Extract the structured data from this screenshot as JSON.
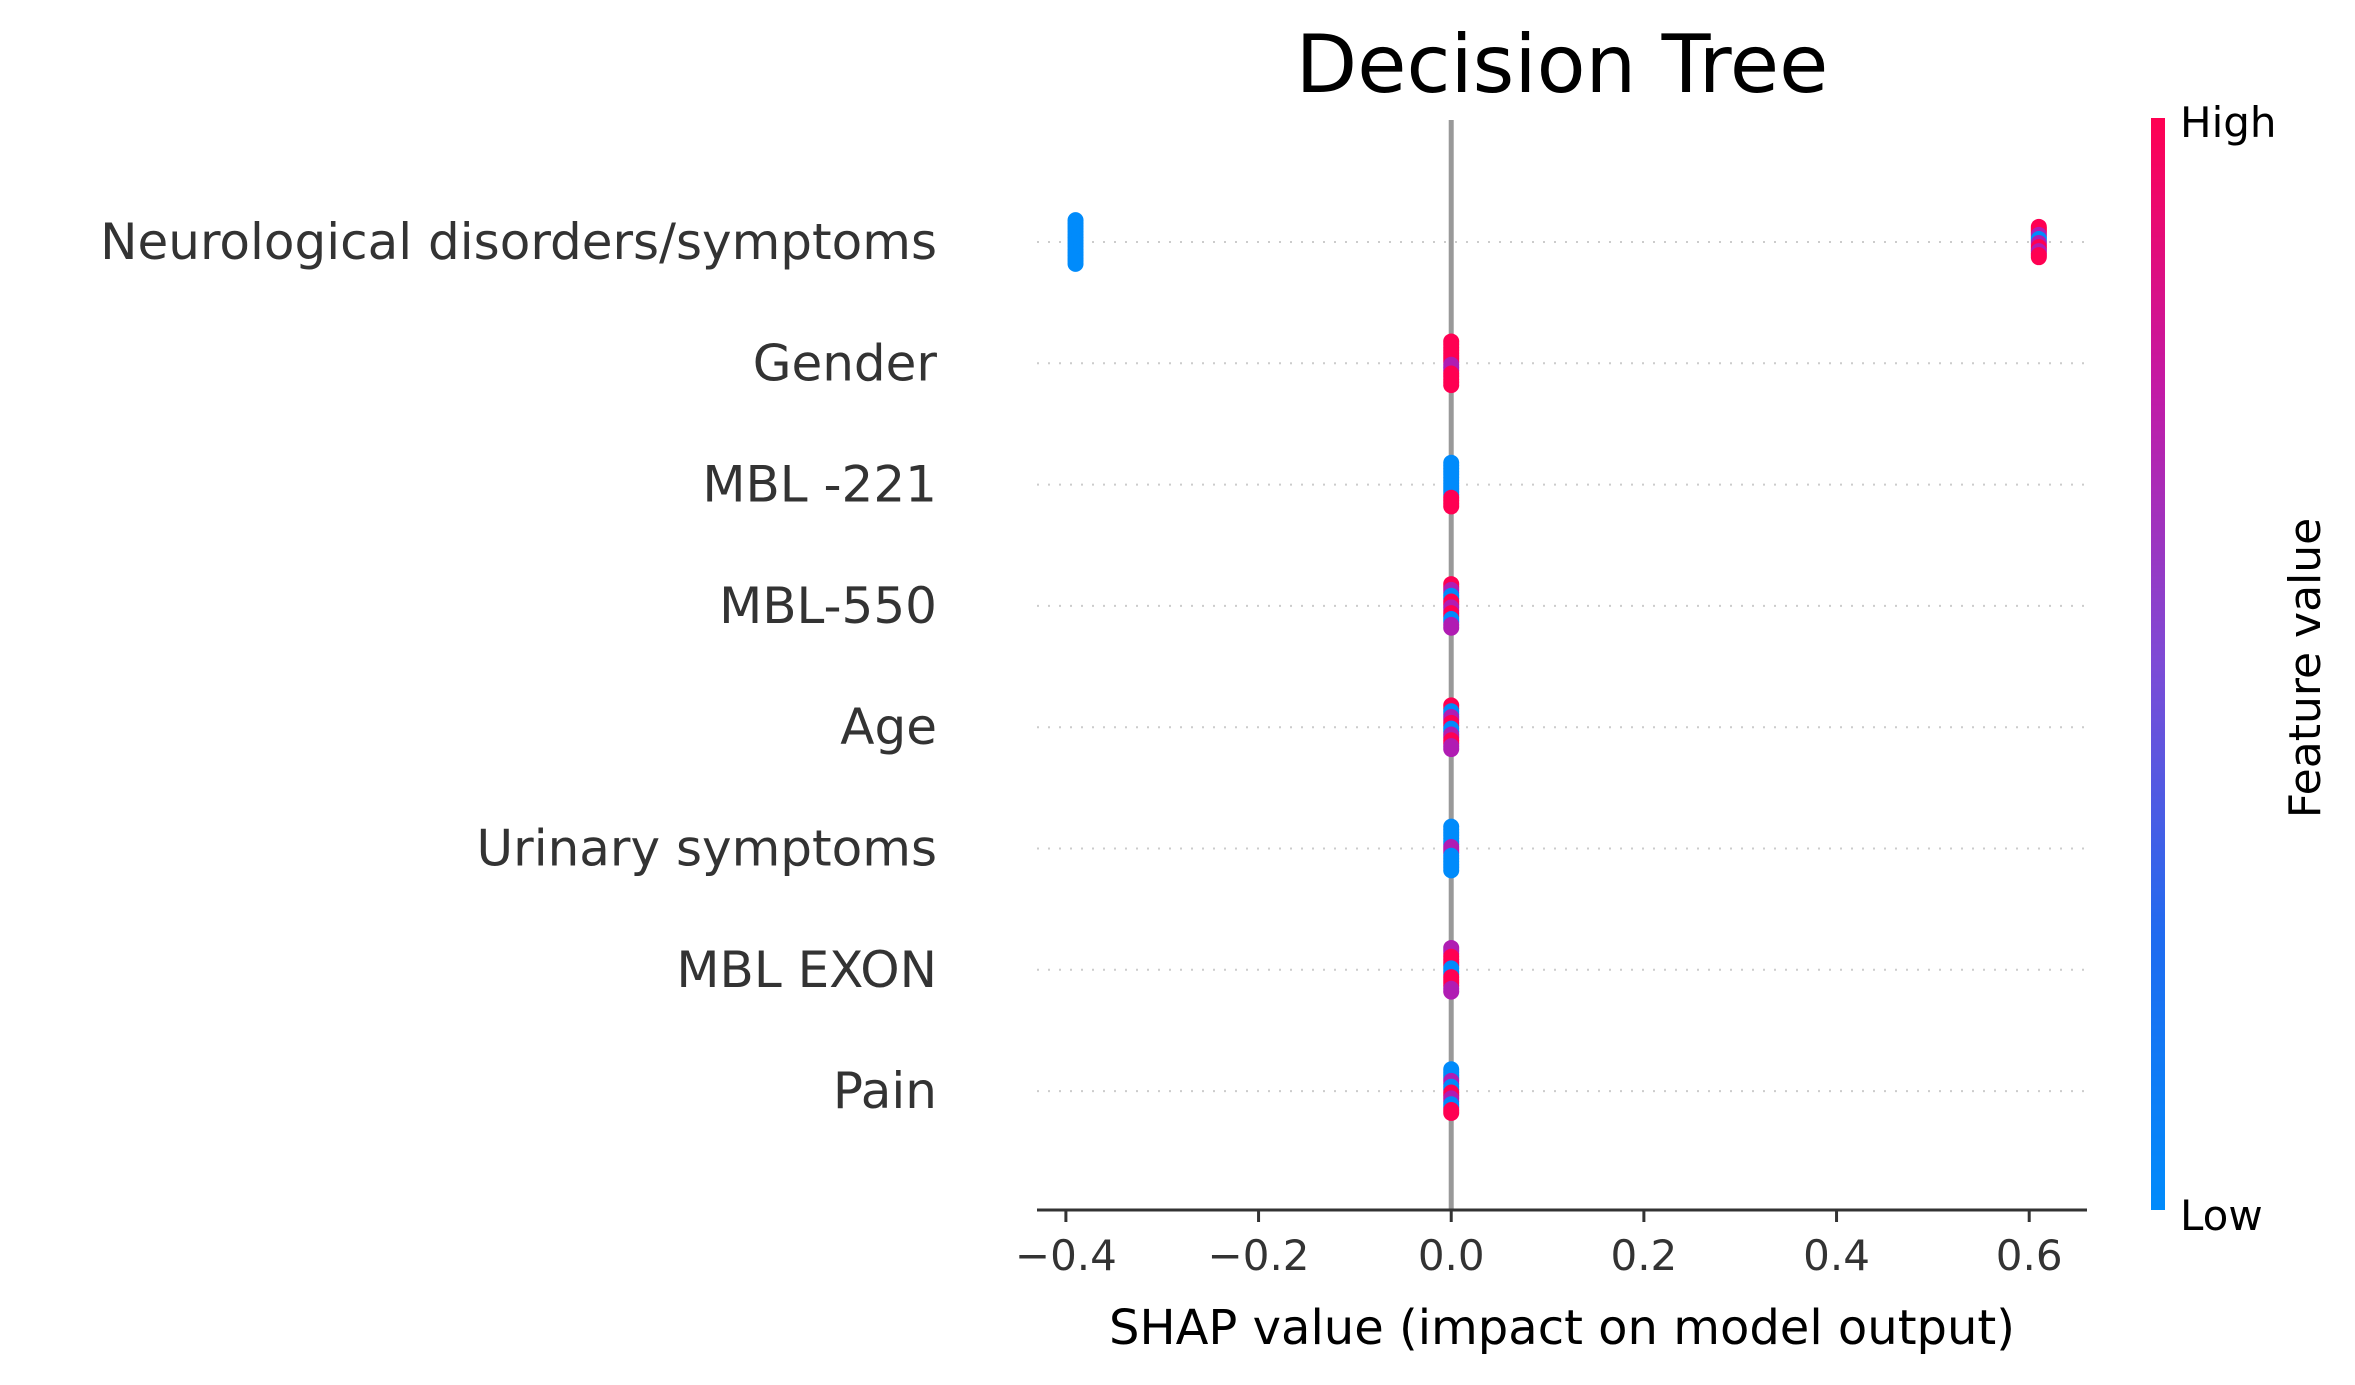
{
  "chart_data": {
    "type": "scatter",
    "subtype": "shap-beeswarm-summary",
    "title": "Decision Tree",
    "xlabel": "SHAP value (impact on model output)",
    "xlim": [
      -0.43,
      0.66
    ],
    "xticks": [
      -0.4,
      -0.2,
      0.0,
      0.2,
      0.4,
      0.6
    ],
    "xtick_labels": [
      "−0.4",
      "−0.2",
      "0.0",
      "0.2",
      "0.4",
      "0.6"
    ],
    "zero_line": 0.0,
    "grid": "dotted horizontal per feature",
    "colorbar": {
      "title": "Feature value",
      "high_label": "High",
      "low_label": "Low",
      "high_color": "#ff0052",
      "mid_color": "#b01cb3",
      "low_color": "#008bfb"
    },
    "features": [
      {
        "name": "Neurological disorders/symptoms",
        "clusters": [
          {
            "x": -0.39,
            "spread": 0.36,
            "pattern": [
              "low"
            ]
          },
          {
            "x": 0.61,
            "spread": 0.25,
            "pattern": [
              "high",
              "high",
              "mid",
              "low",
              "mid",
              "high",
              "mid",
              "high"
            ]
          }
        ]
      },
      {
        "name": "Gender",
        "clusters": [
          {
            "x": 0.0,
            "spread": 0.36,
            "pattern": [
              "high",
              "high",
              "high",
              "mid",
              "high",
              "high"
            ]
          }
        ]
      },
      {
        "name": "MBL -221",
        "clusters": [
          {
            "x": 0.0,
            "spread": 0.36,
            "pattern": [
              "low",
              "low",
              "low",
              "low",
              "low",
              "high",
              "high"
            ]
          }
        ]
      },
      {
        "name": "MBL-550",
        "clusters": [
          {
            "x": 0.0,
            "spread": 0.36,
            "pattern": [
              "high",
              "mid",
              "low",
              "high",
              "mid",
              "high",
              "low",
              "mid"
            ]
          }
        ]
      },
      {
        "name": "Age",
        "clusters": [
          {
            "x": 0.0,
            "spread": 0.36,
            "pattern": [
              "high",
              "low",
              "mid",
              "high",
              "low",
              "mid",
              "high",
              "mid"
            ]
          }
        ]
      },
      {
        "name": "Urinary symptoms",
        "clusters": [
          {
            "x": 0.0,
            "spread": 0.36,
            "pattern": [
              "low",
              "low",
              "low",
              "mid",
              "low",
              "low",
              "low"
            ]
          }
        ]
      },
      {
        "name": "MBL EXON",
        "clusters": [
          {
            "x": 0.0,
            "spread": 0.36,
            "pattern": [
              "mid",
              "high",
              "high",
              "low",
              "high",
              "high",
              "mid"
            ]
          }
        ]
      },
      {
        "name": "Pain",
        "clusters": [
          {
            "x": 0.0,
            "spread": 0.36,
            "pattern": [
              "low",
              "low",
              "mid",
              "low",
              "high",
              "mid",
              "low",
              "high"
            ]
          }
        ]
      }
    ]
  }
}
